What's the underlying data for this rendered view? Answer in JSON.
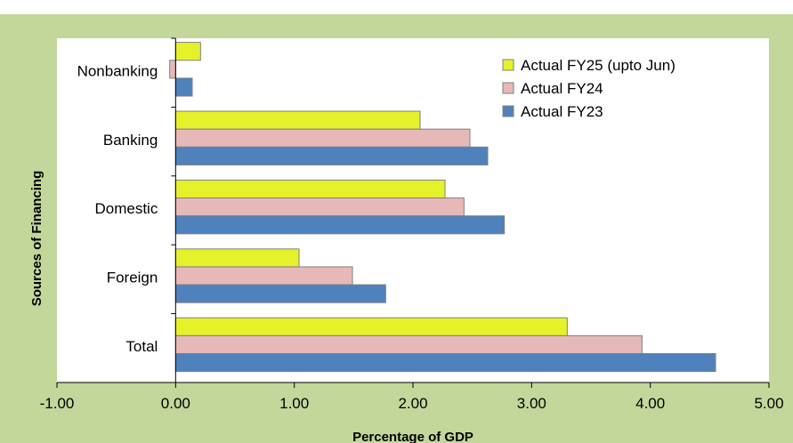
{
  "chart_data": {
    "type": "bar",
    "orientation": "horizontal",
    "title": "",
    "xlabel": "Percentage of  GDP",
    "ylabel": "Sources of Financing",
    "xlim": [
      -1.0,
      5.0
    ],
    "xticks": [
      "-1.00",
      "0.00",
      "1.00",
      "2.00",
      "3.00",
      "4.00",
      "5.00"
    ],
    "categories": [
      "Nonbanking",
      "Banking",
      "Domestic",
      "Foreign",
      "Total"
    ],
    "series": [
      {
        "name": "Actual FY25 (upto Jun)",
        "color": "#e6f229",
        "values": [
          0.21,
          2.06,
          2.27,
          1.04,
          3.3
        ]
      },
      {
        "name": "Actual FY24",
        "color": "#e6b9b8",
        "values": [
          -0.05,
          2.48,
          2.43,
          1.49,
          3.93
        ]
      },
      {
        "name": "Actual FY23",
        "color": "#4f81bd",
        "values": [
          0.14,
          2.63,
          2.77,
          1.77,
          4.55
        ]
      }
    ],
    "legend_position": "top-right",
    "grid": false
  },
  "colors": {
    "frame": "#c4d79b",
    "plot_area": "#ffffff",
    "bar_outline": "#7f7f7f"
  }
}
